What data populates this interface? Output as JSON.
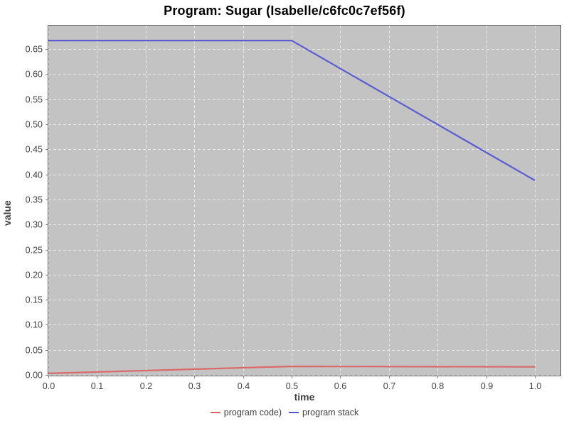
{
  "chart_data": {
    "type": "line",
    "title": "Program: Sugar (Isabelle/c6fc0c7ef56f)",
    "xlabel": "time",
    "ylabel": "value",
    "xlim": [
      0.0,
      1.053
    ],
    "ylim": [
      0.0,
      0.697
    ],
    "x_ticks": [
      "0.0",
      "0.1",
      "0.2",
      "0.3",
      "0.4",
      "0.5",
      "0.6",
      "0.7",
      "0.8",
      "0.9",
      "1.0"
    ],
    "y_ticks": [
      "0.00",
      "0.05",
      "0.10",
      "0.15",
      "0.20",
      "0.25",
      "0.30",
      "0.35",
      "0.40",
      "0.45",
      "0.50",
      "0.55",
      "0.60",
      "0.65"
    ],
    "grid": true,
    "grid_style": "white-dashed",
    "legend_position": "bottom-center",
    "plot_bg_color": "#c3c3c3",
    "grid_color": "#f0f0f0",
    "border_color": "#595959",
    "tick_color": "#8a8a8a",
    "axis_text_color": "#404040",
    "series": [
      {
        "name": "program code)",
        "color": "#dd6464",
        "x": [
          0.0,
          0.5,
          1.0
        ],
        "y": [
          0.003,
          0.017,
          0.016
        ]
      },
      {
        "name": "program stack",
        "color": "#5457d3",
        "x": [
          0.0,
          0.5,
          1.0
        ],
        "y": [
          0.667,
          0.667,
          0.388
        ]
      }
    ]
  }
}
